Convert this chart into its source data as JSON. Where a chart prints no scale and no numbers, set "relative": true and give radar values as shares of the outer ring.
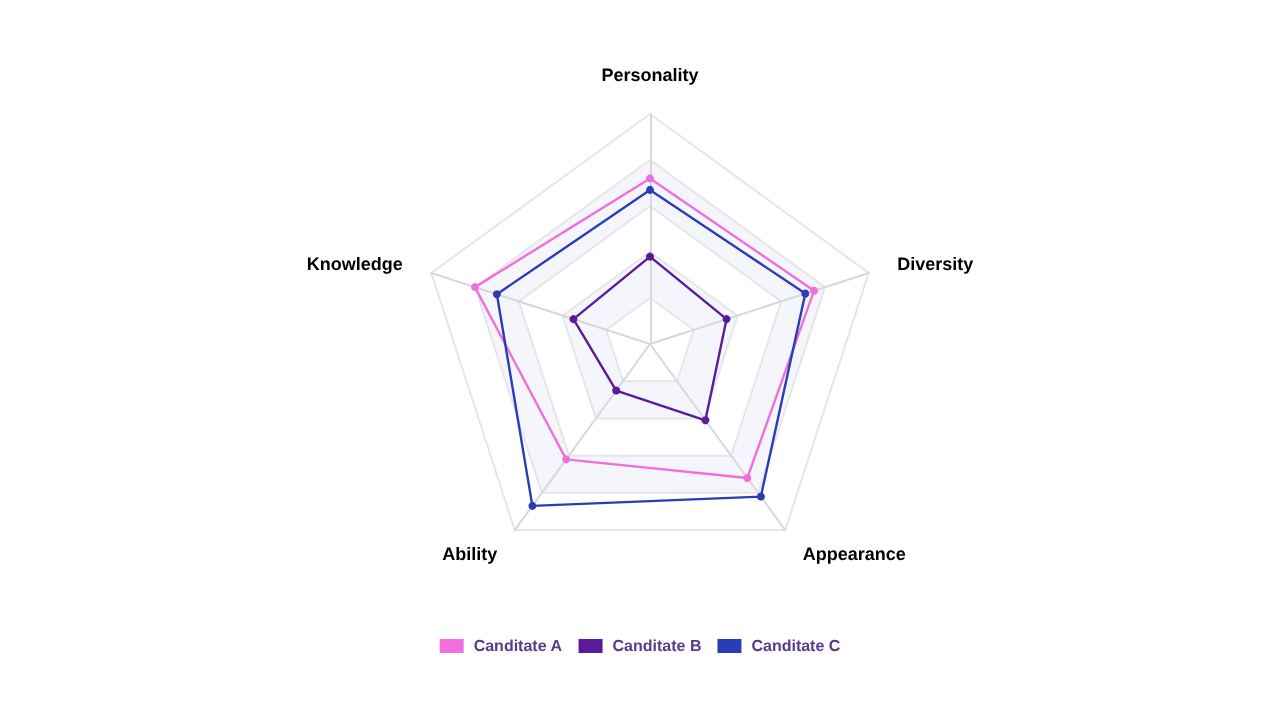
{
  "chart_data": {
    "type": "radar",
    "relative": true,
    "categories": [
      "Personality",
      "Diversity",
      "Appearance",
      "Ability",
      "Knowledge"
    ],
    "series": [
      {
        "name": "Canditate A",
        "color": "#ef6fdc",
        "values": [
          0.72,
          0.75,
          0.72,
          0.62,
          0.8
        ]
      },
      {
        "name": "Canditate B",
        "color": "#5b1a9c",
        "values": [
          0.38,
          0.35,
          0.41,
          0.25,
          0.35
        ]
      },
      {
        "name": "Canditate C",
        "color": "#2a3db5",
        "values": [
          0.67,
          0.71,
          0.82,
          0.87,
          0.7
        ]
      }
    ],
    "legend": "bottom",
    "marker": "circle",
    "line_style": "solid"
  }
}
